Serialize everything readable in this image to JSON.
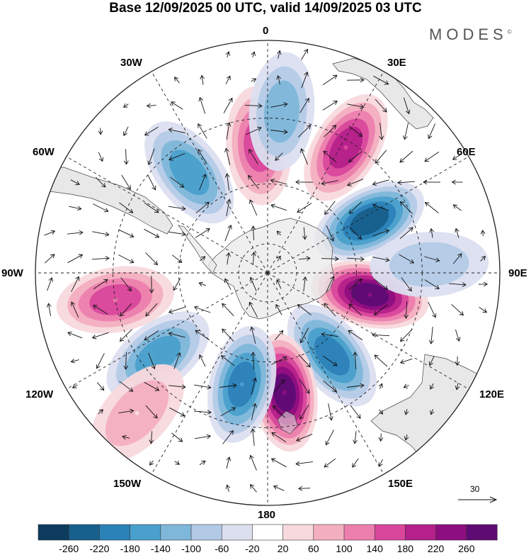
{
  "title": "Base 12/09/2025 00 UTC, valid 14/09/2025 03 UTC",
  "brand": "MODES",
  "brand_mark": "©",
  "map": {
    "projection": "south-polar-stereographic",
    "longitude_labels": {
      "lon_0": "0",
      "lon_30e": "30E",
      "lon_60e": "60E",
      "lon_90e": "90E",
      "lon_120e": "120E",
      "lon_150e": "150E",
      "lon_180": "180",
      "lon_150w": "150W",
      "lon_120w": "120W",
      "lon_90w": "90W",
      "lon_60w": "60W",
      "lon_30w": "30W"
    },
    "reference_vector": {
      "value": "30",
      "icon": "arrow-right-icon"
    },
    "anomaly_centers": [
      {
        "name": "pos-30e",
        "lon": 32,
        "lat": -42,
        "value": 180
      },
      {
        "name": "neg-60e",
        "lon": 63,
        "lat": -52,
        "value": -220
      },
      {
        "name": "pos-100e",
        "lon": 102,
        "lat": -55,
        "value": 240
      },
      {
        "name": "neg-140e",
        "lon": 142,
        "lat": -55,
        "value": -180
      },
      {
        "name": "pos-170w",
        "lon": 172,
        "lat": -50,
        "value": 260
      },
      {
        "name": "neg-150w",
        "lon": -167,
        "lat": -52,
        "value": -160
      },
      {
        "name": "neg-120w",
        "lon": -127,
        "lat": -45,
        "value": -140
      },
      {
        "name": "pos-100w",
        "lon": -100,
        "lat": -40,
        "value": 120
      },
      {
        "name": "neg-40w",
        "lon": -38,
        "lat": -48,
        "value": -140
      },
      {
        "name": "pos-15w",
        "lon": -4,
        "lat": -48,
        "value": 140
      },
      {
        "name": "neg-0",
        "lon": 5,
        "lat": -38,
        "value": -100
      },
      {
        "name": "pos-120w-south",
        "lon": -137,
        "lat": -30,
        "value": 60
      },
      {
        "name": "neg-90e",
        "lon": 87,
        "lat": -38,
        "value": -60
      }
    ]
  },
  "colorbar": {
    "ticks": [
      "-260",
      "-220",
      "-180",
      "-140",
      "-100",
      "-60",
      "-20",
      "20",
      "60",
      "100",
      "140",
      "180",
      "220",
      "260"
    ],
    "colors": [
      "#0c3b5e",
      "#175f8c",
      "#2b82b8",
      "#4aa0cc",
      "#7fb7da",
      "#b3cae6",
      "#dcdff0",
      "#ffffff",
      "#f8d9dd",
      "#f3afc0",
      "#ec7fae",
      "#d9479c",
      "#b5208a",
      "#8d0e80",
      "#5e0c74"
    ]
  },
  "coastline_color": "#444444",
  "land_color": "#e9e9e9"
}
